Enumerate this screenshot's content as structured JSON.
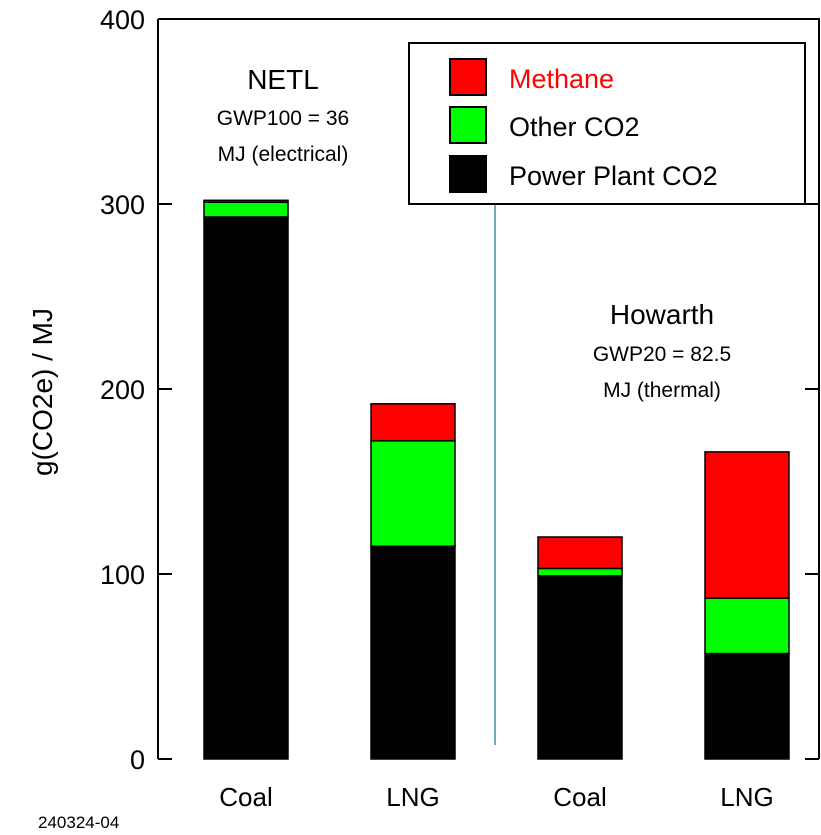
{
  "chart_data": {
    "type": "bar",
    "stacked": true,
    "ylabel": "g(CO2e) / MJ",
    "xlabel": "",
    "ylim": [
      0,
      400
    ],
    "yticks": [
      0,
      100,
      200,
      300,
      400
    ],
    "categories": [
      "Coal",
      "LNG",
      "Coal",
      "LNG"
    ],
    "series": [
      {
        "name": "Power Plant CO2",
        "color": "#000000",
        "values": [
          293,
          115,
          99,
          57
        ]
      },
      {
        "name": "Other CO2",
        "color": "#00ff00",
        "values": [
          8,
          57,
          4,
          30
        ]
      },
      {
        "name": "Methane",
        "color": "#ff0000",
        "values": [
          1,
          20,
          17,
          79
        ]
      }
    ],
    "legend": {
      "placement": "top-right",
      "entries": [
        {
          "label": "Methane",
          "color": "#ff0000",
          "text_color": "#ff0000"
        },
        {
          "label": "Other CO2",
          "color": "#00ff00",
          "text_color": "#000000"
        },
        {
          "label": "Power Plant CO2",
          "color": "#000000",
          "text_color": "#000000"
        }
      ]
    },
    "groups": [
      {
        "title": "NETL",
        "line1": "GWP100 = 36",
        "line2": "MJ (electrical)"
      },
      {
        "title": "Howarth",
        "line1": "GWP20 = 82.5",
        "line2": "MJ (thermal)"
      }
    ],
    "divider_color": "#1a6e8c",
    "grid": false
  },
  "figure_id": "240324-04"
}
